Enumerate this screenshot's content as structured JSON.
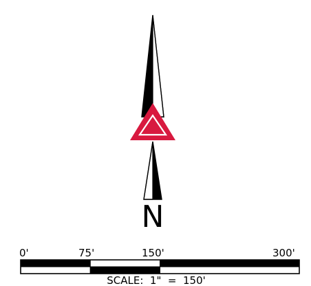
{
  "north_arrow": {
    "letter": "N",
    "triangle_color": "#d8193f",
    "ink_color": "#000000"
  },
  "scale_bar": {
    "tick_labels": [
      "0'",
      "75'",
      "150'",
      "300'"
    ],
    "tick_values_ft": [
      0,
      75,
      150,
      300
    ],
    "segments": [
      {
        "from_ft": 0,
        "to_ft": 75,
        "fill": "#000000"
      },
      {
        "from_ft": 75,
        "to_ft": 150,
        "fill": "#ffffff"
      },
      {
        "from_ft": 150,
        "to_ft": 300,
        "fill": "#000000"
      }
    ],
    "lower_segments": [
      {
        "from_ft": 0,
        "to_ft": 75,
        "fill": "#ffffff"
      },
      {
        "from_ft": 75,
        "to_ft": 150,
        "fill": "#000000"
      },
      {
        "from_ft": 150,
        "to_ft": 300,
        "fill": "#ffffff"
      }
    ],
    "caption": "SCALE:  1\"  =  150'"
  }
}
